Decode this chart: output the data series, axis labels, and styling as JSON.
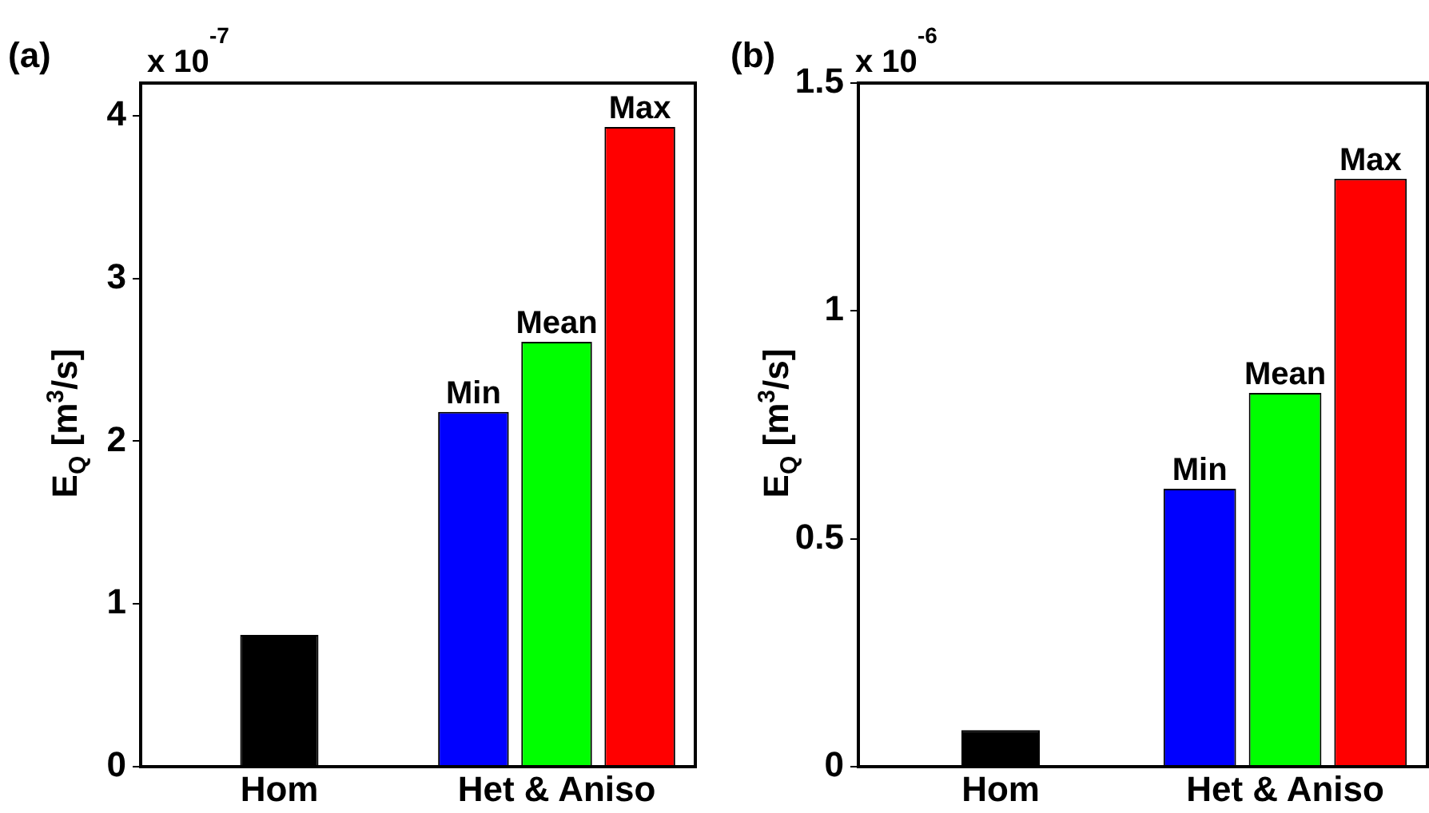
{
  "chart_data": [
    {
      "type": "bar",
      "title": "(a)",
      "ylabel": "E$_{Q}$ [m$^{3}$/s]",
      "annotations": [
        "x 10$^{-7}$"
      ],
      "categories": [
        "Hom",
        "Het & Aniso"
      ],
      "series": [
        {
          "color": "#000000",
          "values": [
            0.81,
            null
          ]
        },
        {
          "name": "Min",
          "color": "#0000ff",
          "values": [
            null,
            2.18
          ]
        },
        {
          "name": "Mean",
          "color": "#00ff00",
          "values": [
            null,
            2.61
          ]
        },
        {
          "name": "Max",
          "color": "#ff0000",
          "values": [
            null,
            3.93
          ]
        }
      ],
      "ylim": [
        0,
        4.2
      ],
      "yticks": [
        0,
        1,
        2,
        3,
        4
      ],
      "grid": false,
      "legend": false
    },
    {
      "type": "bar",
      "title": "(b)",
      "ylabel": "E$_{Q}$ [m$^{3}$/s]",
      "annotations": [
        "x 10$^{-6}$"
      ],
      "categories": [
        "Hom",
        "Het & Aniso"
      ],
      "series": [
        {
          "color": "#000000",
          "values": [
            0.08,
            null
          ]
        },
        {
          "name": "Min",
          "color": "#0000ff",
          "values": [
            null,
            0.61
          ]
        },
        {
          "name": "Mean",
          "color": "#00ff00",
          "values": [
            null,
            0.82
          ]
        },
        {
          "name": "Max",
          "color": "#ff0000",
          "values": [
            null,
            1.29
          ]
        }
      ],
      "ylim": [
        0,
        1.5
      ],
      "yticks": [
        0,
        0.5,
        1,
        1.5
      ],
      "grid": false,
      "legend": false
    }
  ]
}
